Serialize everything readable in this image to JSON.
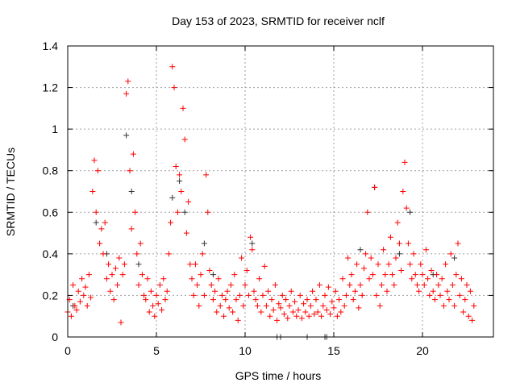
{
  "chart_data": {
    "type": "scatter",
    "title": "Day 153 of 2023, SRMTID for receiver nclf",
    "xlabel": "GPS time / hours",
    "ylabel": "SRMTID / TECUs",
    "xlim": [
      0,
      24
    ],
    "ylim": [
      0,
      1.4
    ],
    "grid": true,
    "x_ticks": [
      "0",
      "5",
      "10",
      "15",
      "20"
    ],
    "x_tick_values": [
      0,
      5,
      10,
      15,
      20
    ],
    "y_ticks": [
      "0",
      "0.2",
      "0.4",
      "0.6",
      "0.8",
      "1",
      "1.2",
      "1.4"
    ],
    "y_tick_values": [
      0,
      0.2,
      0.4,
      0.6,
      0.8,
      1.0,
      1.2,
      1.4
    ],
    "marker": "plus",
    "series": [
      {
        "name": "black",
        "color": "#333333",
        "x": [
          0.3,
          1.6,
          2.2,
          3.3,
          3.6,
          4.0,
          5.9,
          6.3,
          6.6,
          7.7,
          8.2,
          10.4,
          11.8,
          12.0,
          13.5,
          14.5,
          14.6,
          16.5,
          17.3,
          18.7,
          19.3,
          20.6,
          21.8,
          22.5
        ],
        "y": [
          0.15,
          0.55,
          0.4,
          0.97,
          0.7,
          0.35,
          0.67,
          0.75,
          0.6,
          0.45,
          0.3,
          0.45,
          0.0,
          0.0,
          0.0,
          0.0,
          0.0,
          0.42,
          0.72,
          0.4,
          0.6,
          0.3,
          0.38,
          0.25
        ]
      },
      {
        "name": "red",
        "color": "#ff0000",
        "x_start": 0.0,
        "x_step": 0.1,
        "y": [
          0.12,
          0.18,
          0.1,
          0.25,
          0.15,
          0.13,
          0.22,
          0.17,
          0.28,
          0.2,
          0.24,
          0.15,
          0.3,
          0.19,
          0.7,
          0.85,
          0.6,
          0.8,
          0.45,
          0.52,
          0.4,
          0.55,
          0.28,
          0.35,
          0.22,
          0.3,
          0.18,
          0.33,
          0.25,
          0.38,
          0.07,
          0.3,
          0.35,
          1.17,
          1.23,
          0.8,
          0.52,
          0.88,
          0.6,
          0.4,
          0.25,
          0.45,
          0.3,
          0.2,
          0.18,
          0.28,
          0.12,
          0.22,
          0.15,
          0.1,
          0.2,
          0.16,
          0.25,
          0.13,
          0.28,
          0.18,
          0.22,
          0.4,
          0.55,
          1.3,
          1.2,
          0.82,
          0.6,
          0.78,
          0.7,
          1.1,
          0.95,
          0.5,
          0.65,
          0.35,
          0.28,
          0.2,
          0.35,
          0.25,
          0.15,
          0.3,
          0.4,
          0.2,
          0.78,
          0.6,
          0.32,
          0.25,
          0.18,
          0.22,
          0.12,
          0.28,
          0.15,
          0.2,
          0.1,
          0.18,
          0.22,
          0.14,
          0.25,
          0.12,
          0.3,
          0.18,
          0.08,
          0.2,
          0.38,
          0.15,
          0.25,
          0.32,
          0.2,
          0.48,
          0.42,
          0.22,
          0.18,
          0.15,
          0.28,
          0.12,
          0.2,
          0.34,
          0.15,
          0.22,
          0.1,
          0.18,
          0.13,
          0.25,
          0.08,
          0.16,
          0.14,
          0.2,
          0.11,
          0.18,
          0.09,
          0.15,
          0.22,
          0.12,
          0.17,
          0.1,
          0.13,
          0.2,
          0.09,
          0.16,
          0.12,
          0.18,
          0.1,
          0.15,
          0.22,
          0.11,
          0.18,
          0.12,
          0.25,
          0.1,
          0.15,
          0.2,
          0.13,
          0.24,
          0.11,
          0.17,
          0.14,
          0.22,
          0.1,
          0.18,
          0.12,
          0.28,
          0.15,
          0.2,
          0.38,
          0.25,
          0.3,
          0.18,
          0.22,
          0.35,
          0.14,
          0.25,
          0.2,
          0.33,
          0.4,
          0.6,
          0.28,
          0.38,
          0.3,
          0.72,
          0.2,
          0.35,
          0.15,
          0.25,
          0.42,
          0.3,
          0.22,
          0.35,
          0.48,
          0.3,
          0.25,
          0.38,
          0.55,
          0.45,
          0.32,
          0.7,
          0.84,
          0.62,
          0.45,
          0.35,
          0.28,
          0.4,
          0.3,
          0.25,
          0.22,
          0.35,
          0.3,
          0.25,
          0.42,
          0.28,
          0.2,
          0.32,
          0.22,
          0.18,
          0.3,
          0.25,
          0.2,
          0.28,
          0.15,
          0.35,
          0.22,
          0.18,
          0.4,
          0.25,
          0.15,
          0.3,
          0.45,
          0.2,
          0.28,
          0.12,
          0.18,
          0.25,
          0.1,
          0.22,
          0.08,
          0.15
        ]
      }
    ]
  }
}
